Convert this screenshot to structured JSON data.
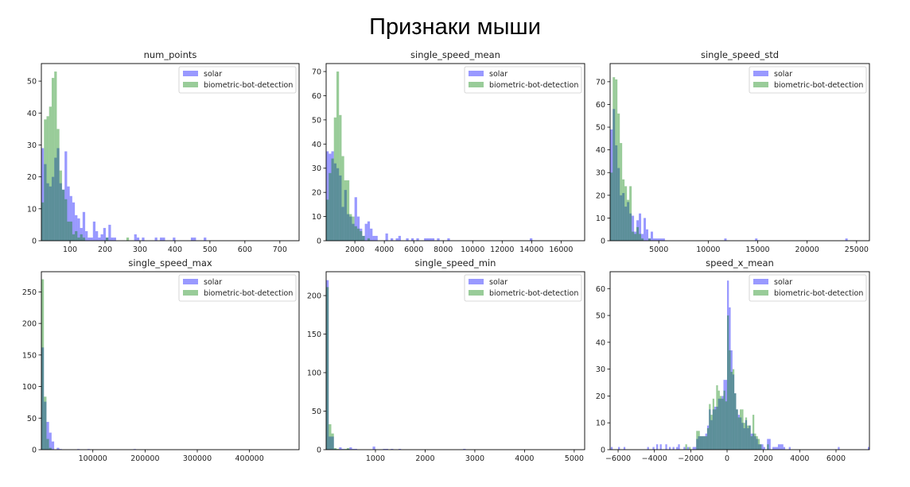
{
  "title": "Признаки мыши",
  "colors": {
    "solar": "#0000ff",
    "bot": "#008000",
    "alpha": 0.4
  },
  "chart_data": [
    {
      "type": "bar",
      "title": "num_points",
      "xlim": [
        18,
        755
      ],
      "ylim": [
        0,
        55.5
      ],
      "xticks": [
        100,
        200,
        300,
        400,
        500,
        600,
        700
      ],
      "yticks": [
        0,
        10,
        20,
        30,
        40,
        50
      ],
      "legend": [
        "solar",
        "biometric-bot-detection"
      ],
      "legend_placement": "top-right",
      "bin_start": 18,
      "bin_width": 7.37,
      "series": [
        {
          "name": "solar",
          "counts": [
            29,
            24,
            18,
            17,
            20,
            26,
            29,
            18,
            16,
            28,
            17,
            14,
            12,
            8,
            7,
            4,
            9,
            3,
            1,
            1,
            6,
            3,
            1,
            2,
            4,
            1,
            5,
            1,
            1,
            0,
            0,
            0,
            0,
            0,
            0,
            0,
            2,
            1,
            0,
            1,
            0,
            0,
            0,
            0,
            1,
            0,
            1,
            1,
            0,
            0,
            0,
            1,
            0,
            0,
            0,
            0,
            0,
            0,
            1,
            1,
            0,
            0,
            0,
            1
          ]
        },
        {
          "name": "biometric-bot-detection",
          "counts": [
            12,
            38,
            39,
            42,
            51,
            53,
            35,
            22,
            16,
            13,
            6,
            6,
            2,
            3,
            1,
            2,
            1,
            0,
            0,
            0,
            0,
            0,
            0,
            0,
            0,
            1,
            0,
            0,
            0,
            0,
            0,
            0,
            0,
            1
          ]
        }
      ]
    },
    {
      "type": "bar",
      "title": "single_speed_mean",
      "xlim": [
        50,
        17600
      ],
      "ylim": [
        0,
        73.3
      ],
      "xticks": [
        2000,
        4000,
        6000,
        8000,
        10000,
        12000,
        14000,
        16000
      ],
      "yticks": [
        0,
        10,
        20,
        30,
        40,
        50,
        60,
        70
      ],
      "legend": [
        "solar",
        "biometric-bot-detection"
      ],
      "legend_placement": "top-right",
      "bin_start": 50,
      "bin_width": 175,
      "series": [
        {
          "name": "solar",
          "counts": [
            37,
            36,
            37,
            32,
            30,
            27,
            14,
            21,
            11,
            10,
            7,
            18,
            10,
            5,
            2,
            7,
            8,
            5,
            2,
            2,
            0,
            0,
            0,
            3,
            0,
            1,
            0,
            1,
            2,
            0,
            0,
            1,
            0,
            1,
            0,
            1,
            0,
            0,
            1,
            1,
            1,
            1,
            0,
            1,
            0,
            0,
            0,
            1,
            0,
            0,
            0,
            0,
            0,
            0,
            0,
            0,
            0,
            0,
            0,
            0,
            0,
            0,
            0,
            0,
            0,
            0,
            0,
            0,
            0,
            0,
            0,
            0,
            0,
            0,
            0,
            0,
            0,
            0,
            0,
            1
          ]
        },
        {
          "name": "biometric-bot-detection",
          "counts": [
            17,
            28,
            34,
            51,
            70,
            52,
            35,
            25,
            25,
            11,
            10,
            6,
            5,
            4,
            2,
            0,
            1
          ]
        }
      ]
    },
    {
      "type": "bar",
      "title": "single_speed_std",
      "xlim": [
        80,
        26300
      ],
      "ylim": [
        0,
        78
      ],
      "xticks": [
        5000,
        10000,
        15000,
        20000,
        25000
      ],
      "yticks": [
        0,
        10,
        20,
        30,
        40,
        50,
        60,
        70
      ],
      "legend": [
        "solar",
        "biometric-bot-detection"
      ],
      "legend_placement": "top-right",
      "bin_start": 100,
      "bin_width": 240,
      "series": [
        {
          "name": "solar",
          "counts": [
            49,
            58,
            42,
            32,
            20,
            21,
            15,
            17,
            12,
            11,
            4,
            9,
            12,
            3,
            10,
            5,
            1,
            4,
            1,
            1,
            1,
            1,
            1,
            0,
            0,
            0,
            0,
            0,
            0,
            0,
            0,
            0,
            0,
            0,
            0,
            0,
            0,
            0,
            0,
            0,
            0,
            0,
            0,
            0,
            0,
            0,
            0,
            0,
            1,
            0,
            0,
            0,
            0,
            0,
            0,
            0,
            0,
            0,
            0,
            0,
            0,
            1,
            0,
            0,
            0,
            0,
            0,
            0,
            0,
            0,
            0,
            0,
            0,
            0,
            0,
            0,
            0,
            0,
            0,
            0,
            0,
            0,
            0,
            0,
            0,
            0,
            0,
            0,
            0,
            0,
            0,
            0,
            0,
            0,
            0,
            0,
            0,
            0,
            0,
            1
          ]
        },
        {
          "name": "biometric-bot-detection",
          "counts": [
            30,
            72,
            71,
            56,
            43,
            27,
            24,
            18,
            24,
            4,
            3,
            6,
            3,
            1,
            0,
            0,
            1
          ]
        }
      ]
    },
    {
      "type": "bar",
      "title": "single_speed_max",
      "xlim": [
        1400,
        495000
      ],
      "ylim": [
        0,
        282
      ],
      "xticks": [
        100000,
        200000,
        300000,
        400000
      ],
      "yticks": [
        0,
        50,
        100,
        150,
        200,
        250
      ],
      "legend": [
        "solar",
        "biometric-bot-detection"
      ],
      "legend_placement": "top-right",
      "bin_start": 1400,
      "bin_width": 4900,
      "series": [
        {
          "name": "solar",
          "counts": [
            162,
            76,
            44,
            27,
            13,
            0,
            3,
            1,
            0,
            0,
            0,
            0,
            0,
            0,
            1,
            0,
            0,
            0,
            1,
            0,
            0,
            0,
            0,
            0,
            0,
            0,
            0,
            0,
            0,
            0,
            0,
            0,
            0,
            0,
            0,
            0,
            1
          ]
        },
        {
          "name": "biometric-bot-detection",
          "counts": [
            270,
            84,
            17,
            3
          ]
        }
      ]
    },
    {
      "type": "bar",
      "title": "single_speed_min",
      "xlim": [
        8,
        5210
      ],
      "ylim": [
        0,
        231
      ],
      "xticks": [
        1000,
        2000,
        3000,
        4000,
        5000
      ],
      "yticks": [
        0,
        50,
        100,
        150,
        200
      ],
      "legend": [
        "solar",
        "biometric-bot-detection"
      ],
      "legend_placement": "top-right",
      "bin_start": 8,
      "bin_width": 52,
      "series": [
        {
          "name": "solar",
          "counts": [
            220,
            17,
            17,
            1,
            0,
            3,
            1,
            0,
            1,
            3,
            1,
            1,
            0,
            0,
            0,
            0,
            0,
            0,
            4,
            0,
            0,
            0,
            1,
            1,
            0,
            1,
            0,
            0,
            1,
            0,
            0,
            0,
            0,
            0,
            0,
            0,
            0,
            0,
            0,
            0,
            0,
            0,
            0,
            0,
            0,
            0,
            0,
            0,
            0,
            0,
            0,
            0,
            0,
            1
          ]
        },
        {
          "name": "biometric-bot-detection",
          "counts": [
            211,
            33,
            21,
            2,
            1,
            0,
            0,
            1,
            2
          ]
        }
      ]
    },
    {
      "type": "bar",
      "title": "speed_x_mean",
      "xlim": [
        -6440,
        7840
      ],
      "ylim": [
        0,
        66.3
      ],
      "xticks": [
        -6000,
        -4000,
        -2000,
        0,
        2000,
        4000,
        6000
      ],
      "yticks": [
        0,
        10,
        20,
        30,
        40,
        50,
        60
      ],
      "legend": [
        "solar",
        "biometric-bot-detection"
      ],
      "legend_placement": "top-right",
      "bin_width": 100,
      "series": [
        {
          "name": "solar",
          "pairs": [
            [
              -6400,
              1
            ],
            [
              -6000,
              1
            ],
            [
              -5700,
              1
            ],
            [
              -4400,
              1
            ],
            [
              -4100,
              1
            ],
            [
              -3900,
              2
            ],
            [
              -3700,
              2
            ],
            [
              -3400,
              2
            ],
            [
              -3200,
              1
            ],
            [
              -3000,
              1
            ],
            [
              -2800,
              1
            ],
            [
              -2700,
              2
            ],
            [
              -2400,
              1
            ],
            [
              -2200,
              1
            ],
            [
              -1900,
              1
            ],
            [
              -1800,
              1
            ],
            [
              -1700,
              4
            ],
            [
              -1600,
              5
            ],
            [
              -1500,
              5
            ],
            [
              -1400,
              5
            ],
            [
              -1300,
              5
            ],
            [
              -1200,
              6
            ],
            [
              -1100,
              9
            ],
            [
              -1000,
              15
            ],
            [
              -900,
              11
            ],
            [
              -800,
              15
            ],
            [
              -700,
              16
            ],
            [
              -600,
              16
            ],
            [
              -500,
              19
            ],
            [
              -400,
              19
            ],
            [
              -300,
              20
            ],
            [
              -200,
              26
            ],
            [
              -100,
              26
            ],
            [
              0,
              63
            ],
            [
              100,
              53
            ],
            [
              200,
              37
            ],
            [
              300,
              28
            ],
            [
              400,
              21
            ],
            [
              500,
              15
            ],
            [
              600,
              13
            ],
            [
              700,
              12
            ],
            [
              800,
              10
            ],
            [
              900,
              8
            ],
            [
              1000,
              11
            ],
            [
              1100,
              8
            ],
            [
              1200,
              9
            ],
            [
              1300,
              6
            ],
            [
              1400,
              6
            ],
            [
              1500,
              5
            ],
            [
              1600,
              4
            ],
            [
              1700,
              2
            ],
            [
              1800,
              2
            ],
            [
              1900,
              2
            ],
            [
              2000,
              1
            ],
            [
              2200,
              4
            ],
            [
              2300,
              4
            ],
            [
              2500,
              1
            ],
            [
              2600,
              1
            ],
            [
              2700,
              1
            ],
            [
              2800,
              2
            ],
            [
              2900,
              2
            ],
            [
              3000,
              2
            ],
            [
              3100,
              1
            ],
            [
              3400,
              1
            ],
            [
              6100,
              1
            ],
            [
              7750,
              1
            ]
          ]
        },
        {
          "name": "biometric-bot-detection",
          "pairs": [
            [
              -2300,
              2
            ],
            [
              -2100,
              1
            ],
            [
              -1700,
              7
            ],
            [
              -1600,
              7
            ],
            [
              -1500,
              5
            ],
            [
              -1400,
              5
            ],
            [
              -1300,
              5
            ],
            [
              -1200,
              5
            ],
            [
              -1100,
              8
            ],
            [
              -1000,
              17
            ],
            [
              -900,
              13
            ],
            [
              -800,
              19
            ],
            [
              -700,
              15
            ],
            [
              -600,
              24
            ],
            [
              -500,
              22
            ],
            [
              -400,
              20
            ],
            [
              -300,
              19
            ],
            [
              -200,
              22
            ],
            [
              -100,
              18
            ],
            [
              0,
              50
            ],
            [
              100,
              37
            ],
            [
              200,
              29
            ],
            [
              300,
              30
            ],
            [
              400,
              21
            ],
            [
              500,
              15
            ],
            [
              600,
              12
            ],
            [
              700,
              15
            ],
            [
              800,
              15
            ],
            [
              900,
              10
            ],
            [
              1000,
              12
            ],
            [
              1100,
              9
            ],
            [
              1200,
              9
            ],
            [
              1300,
              5
            ],
            [
              1400,
              13
            ],
            [
              1500,
              6
            ],
            [
              1600,
              5
            ],
            [
              1700,
              4
            ],
            [
              1800,
              2
            ],
            [
              2200,
              2
            ]
          ]
        }
      ]
    }
  ]
}
